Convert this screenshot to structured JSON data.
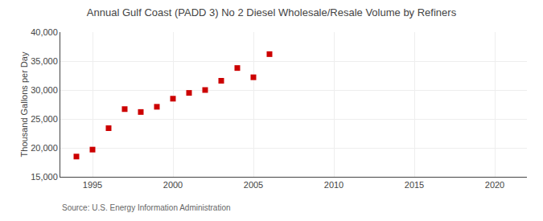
{
  "chart_data": {
    "type": "scatter",
    "title": "Annual Gulf Coast (PADD 3) No 2 Diesel Wholesale/Resale Volume by Refiners",
    "ylabel": "Thousand Gallons per Day",
    "annotations": [
      "Source: U.S. Energy Information Administration"
    ],
    "x": [
      1994,
      1995,
      1996,
      1997,
      1998,
      1999,
      2000,
      2001,
      2002,
      2003,
      2004,
      2005,
      2006
    ],
    "values": [
      18500,
      19700,
      23400,
      26700,
      26200,
      27100,
      28500,
      29500,
      30000,
      31600,
      33800,
      32200,
      36200
    ],
    "color": "#cc0000",
    "marker": "square",
    "xlim": [
      1993,
      2022
    ],
    "ylim": [
      15000,
      40000
    ],
    "xticks": [
      1995,
      2000,
      2005,
      2010,
      2015,
      2020
    ],
    "yticks": [
      {
        "value": 15000,
        "label": "15,000"
      },
      {
        "value": 20000,
        "label": "20,000"
      },
      {
        "value": 25000,
        "label": "25,000"
      },
      {
        "value": 30000,
        "label": "30,000"
      },
      {
        "value": 35000,
        "label": "35,000"
      },
      {
        "value": 40000,
        "label": "40,000"
      }
    ],
    "grid": true
  }
}
